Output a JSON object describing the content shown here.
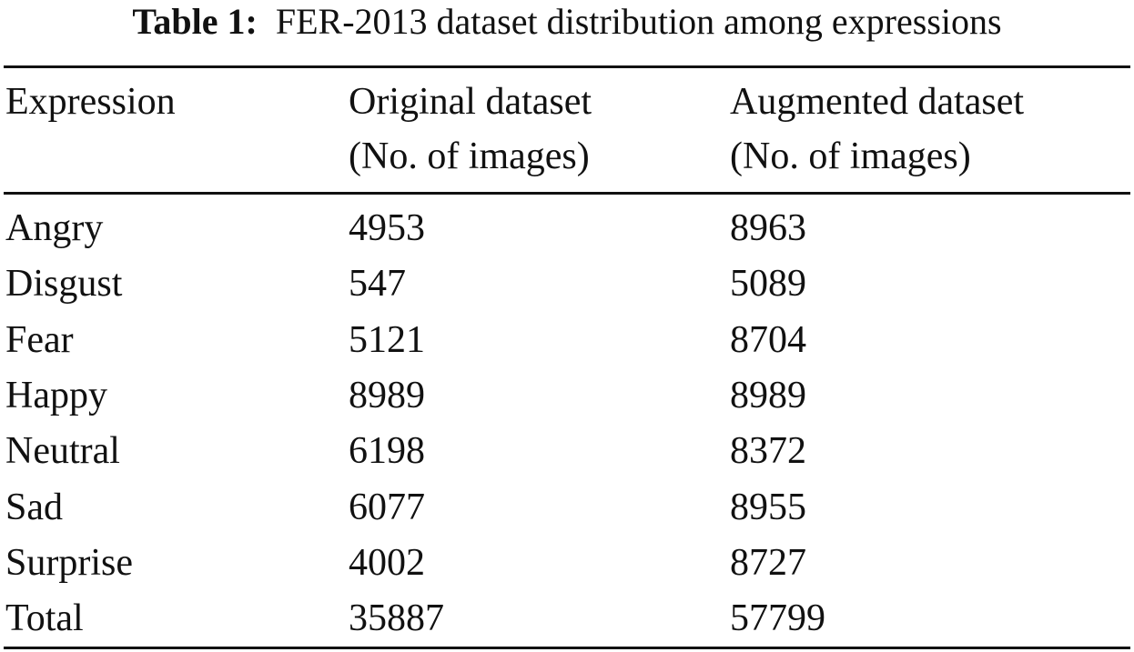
{
  "caption": {
    "label": "Table 1:",
    "text": "FER-2013 dataset distribution among expressions"
  },
  "table": {
    "headers": [
      {
        "line1": "Expression",
        "line2": ""
      },
      {
        "line1": "Original dataset",
        "line2": "(No. of images)"
      },
      {
        "line1": "Augmented dataset",
        "line2": "(No. of images)"
      }
    ],
    "rows": [
      [
        "Angry",
        "4953",
        "8963"
      ],
      [
        "Disgust",
        "547",
        "5089"
      ],
      [
        "Fear",
        "5121",
        "8704"
      ],
      [
        "Happy",
        "8989",
        "8989"
      ],
      [
        "Neutral",
        "6198",
        "8372"
      ],
      [
        "Sad",
        "6077",
        "8955"
      ],
      [
        "Surprise",
        "4002",
        "8727"
      ],
      [
        "Total",
        "35887",
        "57799"
      ]
    ]
  }
}
